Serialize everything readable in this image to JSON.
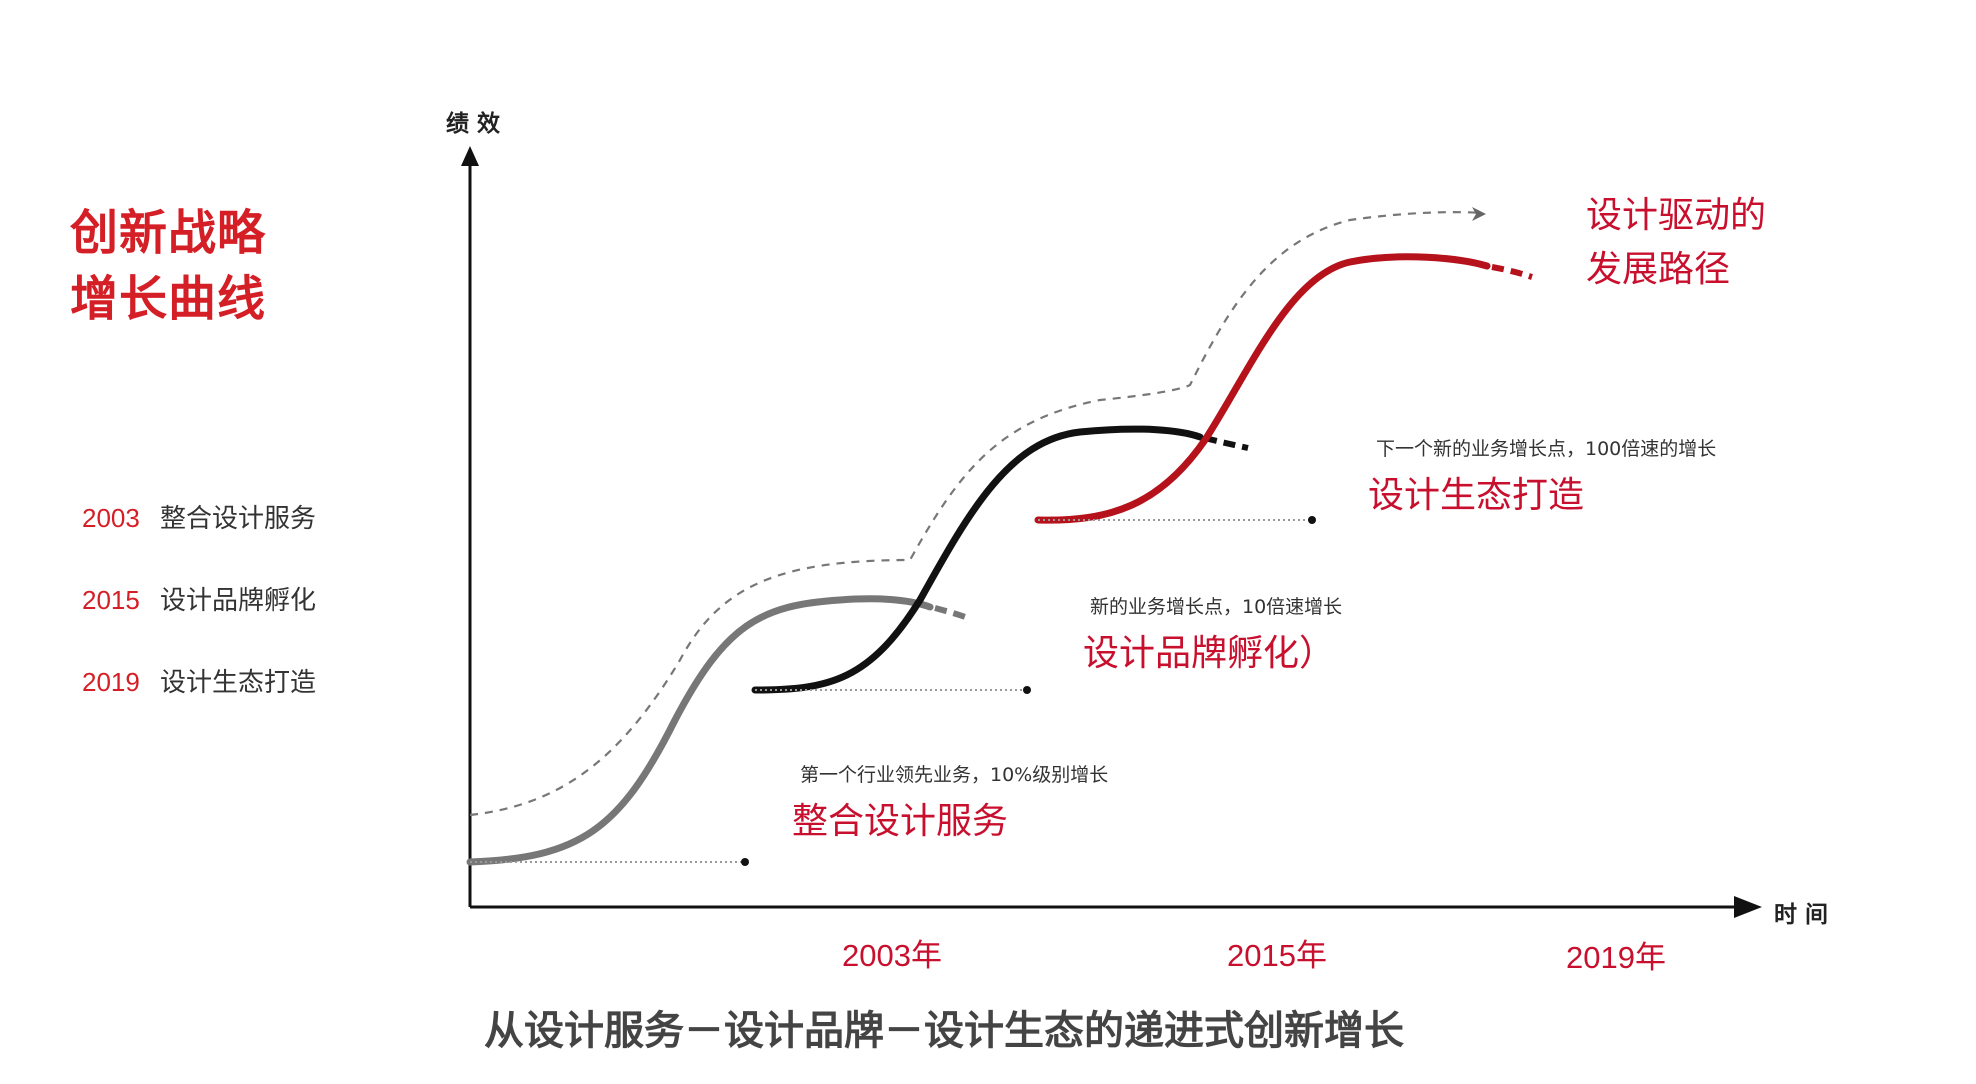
{
  "title": {
    "line1": "创新战略",
    "line2": "增长曲线"
  },
  "legend": [
    {
      "year": "2003",
      "label": "整合设计服务"
    },
    {
      "year": "2015",
      "label": "设计品牌孵化"
    },
    {
      "year": "2019",
      "label": "设计生态打造"
    }
  ],
  "axes": {
    "y_label": "绩 效",
    "x_label": "时 间"
  },
  "stages": [
    {
      "small": "第一个行业领先业务，10%级别增长",
      "big": "整合设计服务",
      "color": "#777777"
    },
    {
      "small": "新的业务增长点，10倍速增长",
      "big": "设计品牌孵化）",
      "color": "#111111"
    },
    {
      "small": "下一个新的业务增长点，100倍速的增长",
      "big": "设计生态打造",
      "color": "#b5121b"
    }
  ],
  "future": {
    "line1": "设计驱动的",
    "line2": "发展路径"
  },
  "years": [
    "2003年",
    "2015年",
    "2019年"
  ],
  "caption": "从设计服务－设计品牌－设计生态的递进式创新增长",
  "colors": {
    "accent": "#d51f26",
    "curve1": "#777777",
    "curve2": "#111111",
    "curve3": "#b5121b",
    "envelope": "#666666"
  }
}
